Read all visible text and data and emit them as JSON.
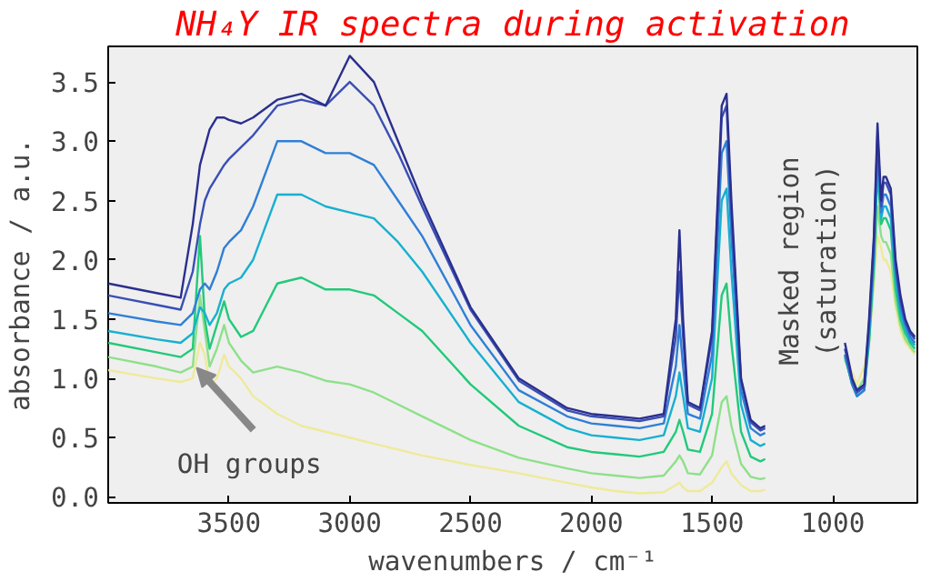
{
  "chart_data": {
    "type": "line",
    "title": "NH₄Y IR spectra during activation",
    "xlabel": "wavenumbers / cm⁻¹",
    "ylabel": "absorbance / a.u.",
    "xlim": [
      4000,
      650
    ],
    "ylim": [
      -0.05,
      3.8
    ],
    "xticks": [
      3500,
      3000,
      2500,
      2000,
      1500,
      1000
    ],
    "yticks": [
      {
        "value": 0,
        "label": "0.0"
      },
      0.5,
      {
        "value": 1,
        "label": "1.0"
      },
      1.5,
      {
        "value": 2,
        "label": "2.0"
      },
      2.5,
      {
        "value": 3,
        "label": "3.0"
      },
      3.5
    ],
    "grid": false,
    "marker": "none",
    "line_style": "solid",
    "annotations": [
      {
        "text": "OH groups",
        "x": 3600,
        "y": 1.15
      },
      "Masked region\n(saturation)"
    ],
    "x": [
      4000,
      3800,
      3700,
      3650,
      3620,
      3600,
      3580,
      3550,
      3520,
      3500,
      3450,
      3400,
      3300,
      3200,
      3100,
      3000,
      2900,
      2800,
      2700,
      2500,
      2300,
      2100,
      2000,
      1900,
      1800,
      1700,
      1650,
      1635,
      1620,
      1600,
      1550,
      1500,
      1460,
      1440,
      1420,
      1380,
      1340,
      1300,
      1280,
      1100,
      950,
      920,
      900,
      870,
      850,
      830,
      815,
      800,
      790,
      780,
      760,
      740,
      720,
      700,
      680,
      660
    ],
    "series": [
      {
        "color": "#eeea9a",
        "values": [
          1.07,
          1.0,
          0.97,
          1.0,
          1.3,
          1.2,
          0.95,
          1.0,
          1.2,
          1.1,
          1.0,
          0.85,
          0.7,
          0.6,
          0.55,
          0.5,
          0.45,
          0.4,
          0.35,
          0.27,
          0.2,
          0.12,
          0.08,
          0.05,
          0.03,
          0.04,
          0.1,
          0.12,
          0.08,
          0.05,
          0.05,
          0.12,
          0.25,
          0.3,
          0.2,
          0.1,
          0.05,
          0.05,
          0.06,
          null,
          1.15,
          1.05,
          0.95,
          1.1,
          1.3,
          1.8,
          2.2,
          2.1,
          2.0,
          2.0,
          1.9,
          1.6,
          1.4,
          1.3,
          1.25,
          1.2
        ]
      },
      {
        "color": "#8ee08a",
        "values": [
          1.18,
          1.1,
          1.05,
          1.1,
          1.7,
          1.4,
          1.1,
          1.25,
          1.45,
          1.3,
          1.15,
          1.05,
          1.1,
          1.05,
          0.98,
          0.95,
          0.88,
          0.78,
          0.68,
          0.48,
          0.33,
          0.24,
          0.2,
          0.18,
          0.16,
          0.18,
          0.3,
          0.35,
          0.3,
          0.2,
          0.19,
          0.35,
          0.8,
          0.85,
          0.6,
          0.28,
          0.17,
          0.15,
          0.16,
          null,
          1.16,
          1.0,
          0.9,
          1.0,
          1.3,
          1.85,
          2.45,
          2.2,
          2.15,
          2.15,
          2.05,
          1.65,
          1.45,
          1.33,
          1.27,
          1.22
        ]
      },
      {
        "color": "#22c97a",
        "values": [
          1.3,
          1.22,
          1.18,
          1.25,
          2.2,
          1.5,
          1.25,
          1.45,
          1.65,
          1.5,
          1.35,
          1.4,
          1.8,
          1.85,
          1.75,
          1.75,
          1.7,
          1.55,
          1.4,
          0.95,
          0.6,
          0.42,
          0.38,
          0.36,
          0.34,
          0.38,
          0.55,
          0.65,
          0.55,
          0.4,
          0.38,
          0.7,
          1.7,
          1.8,
          1.3,
          0.55,
          0.34,
          0.3,
          0.32,
          null,
          1.18,
          0.95,
          0.85,
          0.9,
          1.3,
          1.95,
          2.75,
          2.3,
          2.35,
          2.35,
          2.25,
          1.75,
          1.5,
          1.38,
          1.3,
          1.25
        ]
      },
      {
        "color": "#17b0d0",
        "values": [
          1.4,
          1.33,
          1.3,
          1.38,
          1.6,
          1.55,
          1.45,
          1.55,
          1.75,
          1.8,
          1.85,
          2.0,
          2.55,
          2.55,
          2.45,
          2.4,
          2.35,
          2.15,
          1.9,
          1.3,
          0.8,
          0.58,
          0.52,
          0.5,
          0.48,
          0.52,
          0.85,
          1.05,
          0.85,
          0.58,
          0.55,
          1.0,
          2.5,
          2.6,
          1.9,
          0.78,
          0.48,
          0.43,
          0.45,
          null,
          1.2,
          0.95,
          0.85,
          0.9,
          1.35,
          2.0,
          2.85,
          2.35,
          2.45,
          2.45,
          2.35,
          1.85,
          1.55,
          1.42,
          1.32,
          1.28
        ]
      },
      {
        "color": "#2f7fd6",
        "values": [
          1.55,
          1.48,
          1.45,
          1.55,
          1.75,
          1.8,
          1.75,
          1.9,
          2.1,
          2.15,
          2.25,
          2.45,
          3.0,
          3.0,
          2.9,
          2.9,
          2.8,
          2.5,
          2.2,
          1.45,
          0.9,
          0.68,
          0.62,
          0.6,
          0.58,
          0.62,
          1.1,
          1.45,
          1.1,
          0.7,
          0.66,
          1.2,
          2.9,
          3.0,
          2.2,
          0.9,
          0.58,
          0.52,
          0.54,
          null,
          1.2,
          0.95,
          0.85,
          0.9,
          1.4,
          2.05,
          2.95,
          2.4,
          2.55,
          2.55,
          2.45,
          1.9,
          1.6,
          1.45,
          1.35,
          1.3
        ]
      },
      {
        "color": "#3a4fb5",
        "values": [
          1.7,
          1.62,
          1.58,
          1.9,
          2.3,
          2.5,
          2.6,
          2.7,
          2.8,
          2.85,
          2.95,
          3.05,
          3.3,
          3.35,
          3.3,
          3.5,
          3.3,
          2.9,
          2.45,
          1.58,
          0.98,
          0.73,
          0.68,
          0.66,
          0.64,
          0.68,
          1.35,
          1.9,
          1.35,
          0.78,
          0.73,
          1.35,
          3.2,
          3.3,
          2.4,
          0.98,
          0.63,
          0.56,
          0.58,
          null,
          1.25,
          0.98,
          0.88,
          0.93,
          1.45,
          2.15,
          3.05,
          2.45,
          2.65,
          2.65,
          2.55,
          1.95,
          1.65,
          1.48,
          1.38,
          1.33
        ]
      },
      {
        "color": "#2a2f8e",
        "values": [
          1.8,
          1.72,
          1.68,
          2.3,
          2.8,
          2.95,
          3.1,
          3.2,
          3.2,
          3.18,
          3.15,
          3.2,
          3.35,
          3.4,
          3.3,
          3.72,
          3.5,
          3.0,
          2.5,
          1.6,
          1.0,
          0.75,
          0.7,
          0.68,
          0.66,
          0.7,
          1.5,
          2.25,
          1.5,
          0.8,
          0.75,
          1.4,
          3.3,
          3.4,
          2.5,
          1.0,
          0.65,
          0.58,
          0.6,
          null,
          1.3,
          1.0,
          0.9,
          0.95,
          1.5,
          2.2,
          3.15,
          2.5,
          2.7,
          2.7,
          2.6,
          2.0,
          1.7,
          1.5,
          1.4,
          1.35
        ]
      }
    ]
  }
}
